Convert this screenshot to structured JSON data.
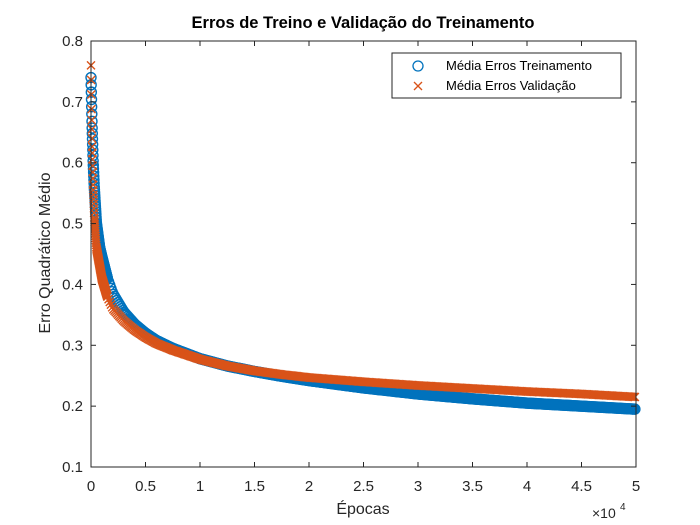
{
  "chart_data": {
    "type": "scatter",
    "title": "Erros de Treino e Validação do Treinamento",
    "xlabel": "Épocas",
    "ylabel": "Erro Quadrático Médio",
    "x_exponent_base": "×10",
    "x_exponent_power": "4",
    "xlim": [
      0,
      50000
    ],
    "ylim": [
      0.1,
      0.8
    ],
    "xticks": [
      0,
      5000,
      10000,
      15000,
      20000,
      25000,
      30000,
      35000,
      40000,
      45000,
      50000
    ],
    "xtick_labels": [
      "0",
      "0.5",
      "1",
      "1.5",
      "2",
      "2.5",
      "3",
      "3.5",
      "4",
      "4.5",
      "5"
    ],
    "yticks": [
      0.1,
      0.2,
      0.3,
      0.4,
      0.5,
      0.6,
      0.7,
      0.8
    ],
    "ytick_labels": [
      "0.1",
      "0.2",
      "0.3",
      "0.4",
      "0.5",
      "0.6",
      "0.7",
      "0.8"
    ],
    "grid": false,
    "legend_position": "top-right",
    "series": [
      {
        "name": "Média Erros Treinamento",
        "marker": "circle",
        "color": "#0072BD",
        "x": [
          0,
          50,
          100,
          200,
          300,
          500,
          800,
          1000,
          1500,
          2000,
          3000,
          4000,
          5000,
          6000,
          7500,
          10000,
          12500,
          15000,
          17500,
          20000,
          25000,
          30000,
          35000,
          40000,
          45000,
          50000
        ],
        "y": [
          0.74,
          0.7,
          0.66,
          0.6,
          0.56,
          0.5,
          0.46,
          0.445,
          0.41,
          0.385,
          0.355,
          0.335,
          0.32,
          0.308,
          0.295,
          0.278,
          0.266,
          0.257,
          0.249,
          0.242,
          0.23,
          0.22,
          0.212,
          0.205,
          0.2,
          0.195
        ]
      },
      {
        "name": "Média Erros Validação",
        "marker": "x",
        "color": "#D95319",
        "x": [
          0,
          50,
          100,
          200,
          300,
          500,
          800,
          1000,
          1500,
          2000,
          3000,
          4000,
          5000,
          6000,
          7500,
          10000,
          12500,
          15000,
          17500,
          20000,
          25000,
          30000,
          35000,
          40000,
          45000,
          50000
        ],
        "y": [
          0.76,
          0.68,
          0.63,
          0.56,
          0.51,
          0.46,
          0.43,
          0.41,
          0.38,
          0.36,
          0.34,
          0.325,
          0.313,
          0.303,
          0.292,
          0.277,
          0.266,
          0.258,
          0.252,
          0.247,
          0.24,
          0.234,
          0.229,
          0.224,
          0.22,
          0.215
        ]
      }
    ]
  }
}
